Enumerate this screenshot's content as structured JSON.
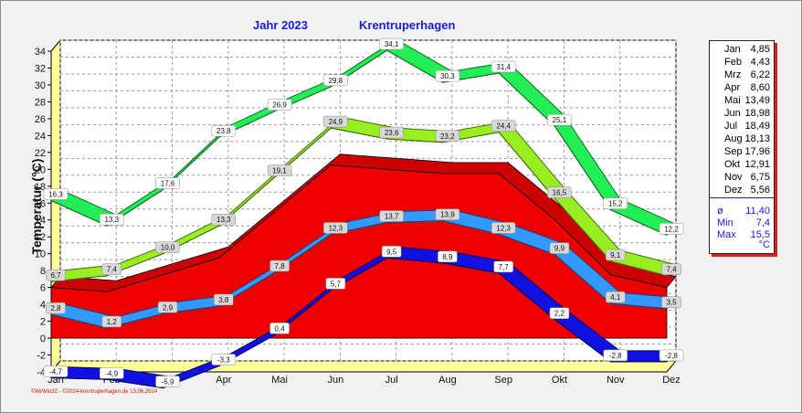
{
  "header": {
    "year": "Jahr  2023",
    "location": "Krentruperhagen"
  },
  "footer": "©WrWin32 - ©2024-krentruperhagen.de  13.06.2024",
  "legend": {
    "months": [
      {
        "label": "Jan",
        "value": "4,85"
      },
      {
        "label": "Feb",
        "value": "4,43"
      },
      {
        "label": "Mrz",
        "value": "6,22"
      },
      {
        "label": "Apr",
        "value": "8,60"
      },
      {
        "label": "Mai",
        "value": "13,49"
      },
      {
        "label": "Jun",
        "value": "18,98"
      },
      {
        "label": "Jul",
        "value": "18,49"
      },
      {
        "label": "Aug",
        "value": "18,13"
      },
      {
        "label": "Sep",
        "value": "17,96"
      },
      {
        "label": "Okt",
        "value": "12,91"
      },
      {
        "label": "Nov",
        "value": "6,75"
      },
      {
        "label": "Dez",
        "value": "5,56"
      }
    ],
    "stats": [
      {
        "label": "ø",
        "value": "11,40"
      },
      {
        "label": "Min",
        "value": "7,4"
      },
      {
        "label": "Max",
        "value": "15,5"
      }
    ],
    "unit": "°C"
  },
  "chart_data": {
    "type": "area",
    "title": "",
    "xlabel": "",
    "ylabel": "Temperatur  (°C)",
    "ylim": [
      -4,
      34
    ],
    "yticks": [
      -4,
      -2,
      0,
      2,
      4,
      6,
      8,
      10,
      12,
      14,
      16,
      18,
      20,
      22,
      24,
      26,
      28,
      30,
      32,
      34
    ],
    "categories": [
      "Jan",
      "Feb",
      "Mrz",
      "Apr",
      "Mai",
      "Jun",
      "Jul",
      "Aug",
      "Sep",
      "Okt",
      "Nov",
      "Dez"
    ],
    "grid": true,
    "series": [
      {
        "values": [
          -4.7,
          -4.9,
          -5.9,
          -3.3,
          0.4,
          5.7,
          9.5,
          8.9,
          7.7,
          2.2,
          -2.8,
          -2.8
        ],
        "labels": [
          "-4,7",
          "-4,9",
          "-5,9",
          "-3,3",
          "0,4",
          "5,7",
          "9,5",
          "8,9",
          "7,7",
          "2,2",
          "-2,8",
          "-2,8"
        ],
        "color": "#1010e0"
      },
      {
        "values": [
          2.8,
          1.2,
          2.9,
          3.8,
          7.8,
          12.3,
          13.7,
          13.9,
          12.3,
          9.9,
          4.1,
          3.5
        ],
        "labels": [
          "2,8",
          "1,2",
          "2,9",
          "3,8",
          "7,8",
          "12,3",
          "13,7",
          "13,9",
          "12,3",
          "9,9",
          "4,1",
          "3,5"
        ],
        "color": "#3399ff"
      },
      {
        "values": [
          6.0,
          5.5,
          7.5,
          9.5,
          15.0,
          20.5,
          20.0,
          19.5,
          19.5,
          14.0,
          7.5,
          6.0
        ],
        "labels": [],
        "color": "#ee0000"
      },
      {
        "values": [
          6.7,
          7.4,
          10.0,
          13.3,
          19.1,
          24.9,
          23.6,
          23.2,
          24.4,
          16.5,
          9.1,
          7.4
        ],
        "labels": [
          "6,7",
          "7,4",
          "10,0",
          "13,3",
          "19,1",
          "24,9",
          "23,6",
          "23,2",
          "24,4",
          "16,5",
          "9,1",
          "7,4"
        ],
        "color": "#99ee22"
      },
      {
        "values": [
          16.3,
          13.3,
          17.6,
          23.8,
          26.9,
          29.8,
          34.1,
          30.3,
          31.4,
          25.1,
          15.2,
          12.2
        ],
        "labels": [
          "16,3",
          "13,3",
          "17,6",
          "23,8",
          "26,9",
          "29,8",
          "34,1",
          "30,3",
          "31,4",
          "25,1",
          "15,2",
          "12,2"
        ],
        "color": "#22ee55"
      }
    ]
  }
}
